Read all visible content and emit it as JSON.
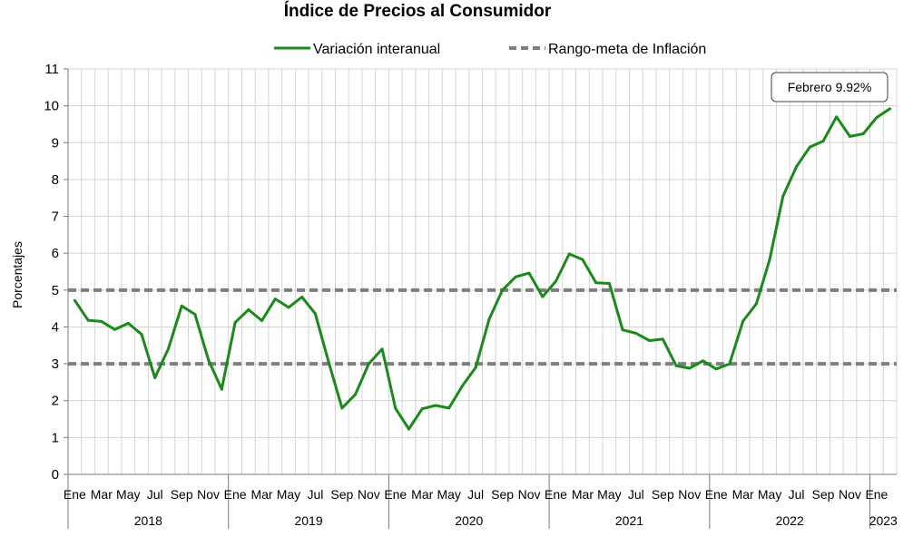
{
  "chart_data": {
    "type": "line",
    "title": "Índice de Precios al Consumidor",
    "ylabel": "Porcentajes",
    "ylim": [
      0,
      11
    ],
    "yticks": [
      "0",
      "1",
      "2",
      "3",
      "4",
      "5",
      "6",
      "7",
      "8",
      "9",
      "10",
      "11"
    ],
    "grid": true,
    "legend_position": "top-center",
    "x_month_labels": [
      "Ene",
      "Mar",
      "May",
      "Jul",
      "Sep",
      "Nov"
    ],
    "x_last_label": "Ene",
    "years": [
      "2018",
      "2019",
      "2020",
      "2021",
      "2022",
      "2023"
    ],
    "series": [
      {
        "name": "Variación interanual",
        "color": "#1a8a1a",
        "style": "solid",
        "values": [
          4.72,
          4.18,
          4.15,
          3.93,
          4.1,
          3.8,
          2.62,
          3.4,
          4.57,
          4.34,
          3.11,
          2.31,
          4.12,
          4.47,
          4.17,
          4.76,
          4.53,
          4.81,
          4.36,
          3.04,
          1.8,
          2.17,
          3.0,
          3.4,
          1.79,
          1.23,
          1.78,
          1.87,
          1.8,
          2.4,
          2.9,
          4.2,
          5.0,
          5.36,
          5.46,
          4.82,
          5.24,
          5.98,
          5.83,
          5.2,
          5.18,
          3.92,
          3.83,
          3.63,
          3.67,
          2.95,
          2.88,
          3.08,
          2.86,
          3.0,
          4.16,
          4.63,
          5.83,
          7.55,
          8.35,
          8.88,
          9.04,
          9.7,
          9.17,
          9.24,
          9.68,
          9.92
        ]
      },
      {
        "name": "Rango-meta de Inflación",
        "color": "#7f7f7f",
        "style": "dashed",
        "bounds": [
          3,
          5
        ]
      }
    ],
    "annotation": "Febrero 9.92%"
  }
}
